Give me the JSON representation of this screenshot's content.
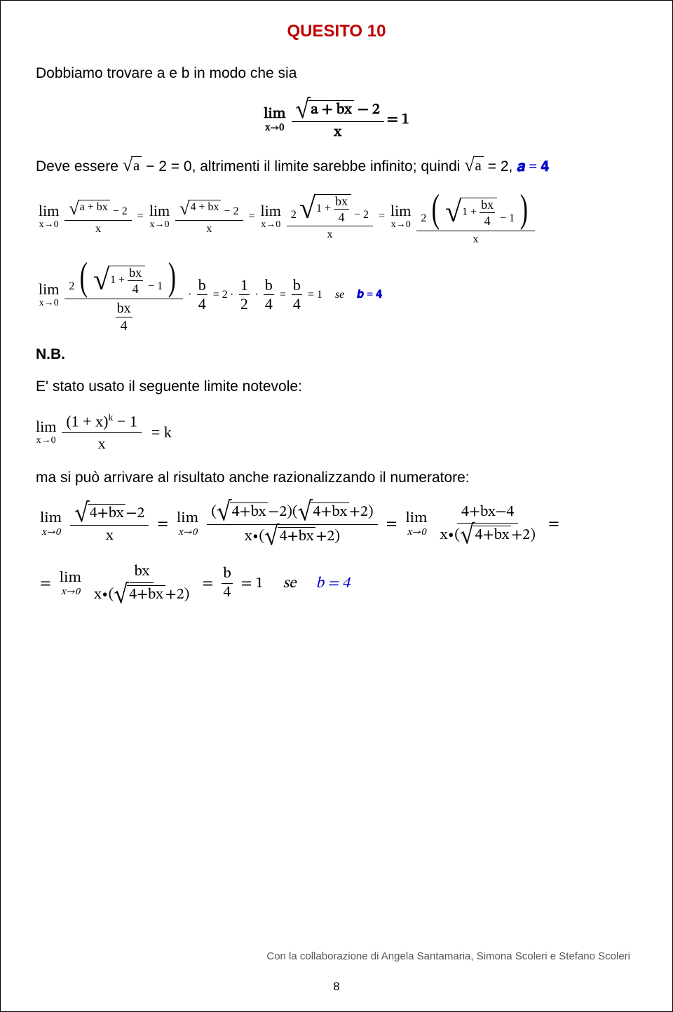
{
  "title": "QUESITO 10",
  "intro_text": "Dobbiamo trovare a e b in modo che sia",
  "main_limit": {
    "lim": "lim",
    "sub_bold": "x→0",
    "num_sqrt": "a + bx",
    "num_minus_2": "− 2",
    "den": "x",
    "rhs": "= 1"
  },
  "line_deve_pre": "Deve essere ",
  "line_deve_sqrt": "a",
  "line_deve_mid": " − 2 = 0, altrimenti il limite sarebbe infinito; quindi ",
  "line_deve_sqrt2": "a",
  "line_deve_post1": " = 2, ",
  "line_deve_a4": "𝒂 = 𝟒",
  "chain1": {
    "lim": "lim",
    "sub": "x→0",
    "t1_num_sqrt": "a + bx",
    "t1_num_tail": "− 2",
    "t1_den": "x",
    "eq": "=",
    "t2_num_sqrt": "4 + bx",
    "t2_num_tail": "− 2",
    "t2_den": "x",
    "t3_coef": "2",
    "t3_rad": "1 +",
    "t3_bx4_n": "bx",
    "t3_bx4_d": "4",
    "t3_tail": "− 2",
    "t3_den": "x",
    "t4_coef": "2",
    "t4_rad": "1 +",
    "t4_bx4_n": "bx",
    "t4_bx4_d": "4",
    "t4_tail": "− 1",
    "t4_den": "x"
  },
  "chain2": {
    "lim": "lim",
    "sub": "x→0",
    "coef": "2",
    "rad": "1 +",
    "bx4_n": "bx",
    "bx4_d": "4",
    "tail": "− 1",
    "den_n": "bx",
    "den_d": "4",
    "dot": "∙",
    "b4_n": "b",
    "b4_d": "4",
    "eq2": "= 2 ∙",
    "half_n": "1",
    "half_d": "2",
    "dot2": "∙",
    "b4b_n": "b",
    "b4b_d": "4",
    "eq3": "=",
    "b4c_n": "b",
    "b4c_d": "4",
    "eq1": "= 1",
    "se": "se",
    "b4_bold": "𝒃 = 𝟒"
  },
  "nb_label": "N.B.",
  "nb_text": "E' stato usato il seguente limite notevole:",
  "not_lim": {
    "lim": "lim",
    "sub": "x→0",
    "num_pre": "(1 + x)",
    "num_k": "k",
    "num_tail": " − 1",
    "den": "x",
    "rhs": "= k"
  },
  "raz_text": "ma si può arrivare al risultato anche razionalizzando il numeratore:",
  "raz": {
    "lim": "lim",
    "sub": "x→0",
    "r1_num_sqrt": "4+bx",
    "r1_num_tail": "−2",
    "r1_den": "x",
    "eq": "=",
    "r2_num_a_sqrt": "4+bx",
    "r2_num_a_tail": "−2",
    "r2_num_b_sqrt": "4+bx",
    "r2_num_b_tail": "+2",
    "r2_den_pre": "x∙(",
    "r2_den_sqrt": "4+bx",
    "r2_den_tail": "+2)",
    "r3_num": "4+bx−4",
    "r3_den_pre": "x∙(",
    "r3_den_sqrt": "4+bx",
    "r3_den_tail": "+2)",
    "trail_eq": "=",
    "r4_num": "bx",
    "r4_den_pre": "x∙(",
    "r4_den_sqrt": "4+bx",
    "r4_den_tail": "+2)",
    "eqb4": "=",
    "b4_n": "b",
    "b4_d": "4",
    "eq1": "= 1",
    "se": "se",
    "b4_res": "b = 4"
  },
  "footer": "Con la collaborazione di Angela Santamaria, Simona Scoleri e Stefano Scoleri",
  "pagenum": "8"
}
